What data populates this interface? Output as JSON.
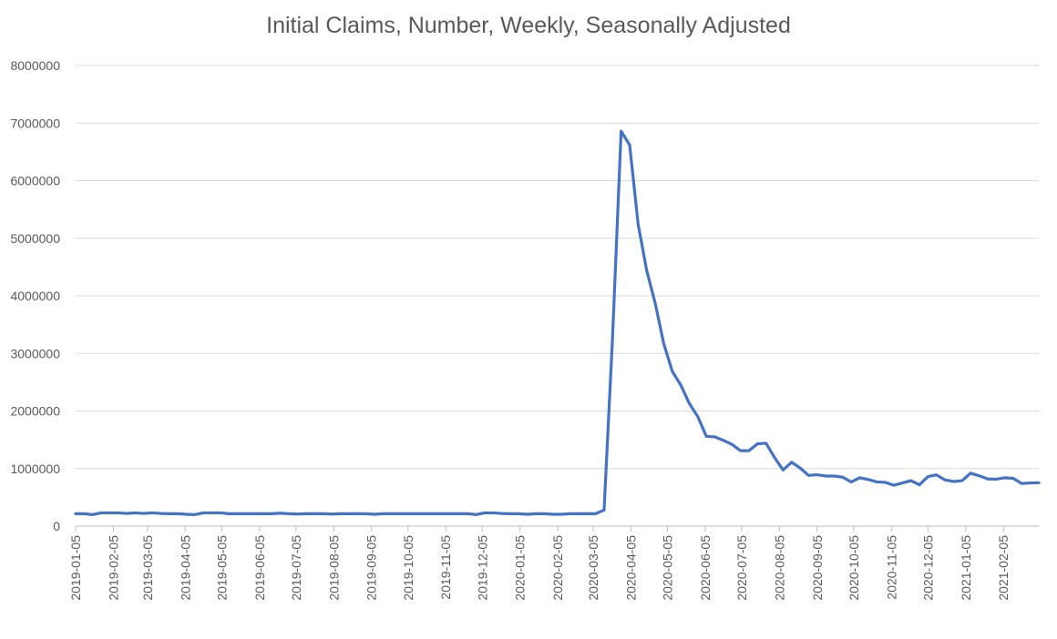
{
  "chart_data": {
    "type": "line",
    "title": "Initial Claims, Number, Weekly, Seasonally Adjusted",
    "xlabel": "",
    "ylabel": "",
    "ylim": [
      0,
      8000000
    ],
    "y_ticks": [
      "0",
      "1000000",
      "2000000",
      "3000000",
      "4000000",
      "5000000",
      "6000000",
      "7000000",
      "8000000"
    ],
    "x_tick_labels": [
      "2019-01-05",
      "2019-02-05",
      "2019-03-05",
      "2019-04-05",
      "2019-05-05",
      "2019-06-05",
      "2019-07-05",
      "2019-08-05",
      "2019-09-05",
      "2019-10-05",
      "2019-11-05",
      "2019-12-05",
      "2020-01-05",
      "2020-02-05",
      "2020-03-05",
      "2020-04-05",
      "2020-05-05",
      "2020-06-05",
      "2020-07-05",
      "2020-08-05",
      "2020-09-05",
      "2020-10-05",
      "2020-11-05",
      "2020-12-05",
      "2021-01-05",
      "2021-02-05"
    ],
    "x_range": [
      "2019-01-05",
      "2021-03-06"
    ],
    "grid": true,
    "legend": "none",
    "color": "#4472c4",
    "series": [
      {
        "x": [
          "2019-01-05",
          "2019-01-12",
          "2019-01-19",
          "2019-01-26",
          "2019-02-02",
          "2019-02-09",
          "2019-02-16",
          "2019-02-23",
          "2019-03-02",
          "2019-03-09",
          "2019-03-16",
          "2019-03-23",
          "2019-03-30",
          "2019-04-06",
          "2019-04-13",
          "2019-04-20",
          "2019-04-27",
          "2019-05-04",
          "2019-05-11",
          "2019-05-18",
          "2019-05-25",
          "2019-06-01",
          "2019-06-08",
          "2019-06-15",
          "2019-06-22",
          "2019-06-29",
          "2019-07-06",
          "2019-07-13",
          "2019-07-20",
          "2019-07-27",
          "2019-08-03",
          "2019-08-10",
          "2019-08-17",
          "2019-08-24",
          "2019-08-31",
          "2019-09-07",
          "2019-09-14",
          "2019-09-21",
          "2019-09-28",
          "2019-10-05",
          "2019-10-12",
          "2019-10-19",
          "2019-10-26",
          "2019-11-02",
          "2019-11-09",
          "2019-11-16",
          "2019-11-23",
          "2019-11-30",
          "2019-12-07",
          "2019-12-14",
          "2019-12-21",
          "2019-12-28",
          "2020-01-04",
          "2020-01-11",
          "2020-01-18",
          "2020-01-25",
          "2020-02-01",
          "2020-02-08",
          "2020-02-15",
          "2020-02-22",
          "2020-02-29",
          "2020-03-07",
          "2020-03-14",
          "2020-03-21",
          "2020-03-28",
          "2020-04-04",
          "2020-04-11",
          "2020-04-18",
          "2020-04-25",
          "2020-05-02",
          "2020-05-09",
          "2020-05-16",
          "2020-05-23",
          "2020-05-30",
          "2020-06-06",
          "2020-06-13",
          "2020-06-20",
          "2020-06-27",
          "2020-07-04",
          "2020-07-11",
          "2020-07-18",
          "2020-07-25",
          "2020-08-01",
          "2020-08-08",
          "2020-08-15",
          "2020-08-22",
          "2020-08-29",
          "2020-09-05",
          "2020-09-12",
          "2020-09-19",
          "2020-09-26",
          "2020-10-03",
          "2020-10-10",
          "2020-10-17",
          "2020-10-24",
          "2020-10-31",
          "2020-11-07",
          "2020-11-14",
          "2020-11-21",
          "2020-11-28",
          "2020-12-05",
          "2020-12-12",
          "2020-12-19",
          "2020-12-26",
          "2021-01-02",
          "2021-01-09",
          "2021-01-16",
          "2021-01-23",
          "2021-01-30",
          "2021-02-06",
          "2021-02-13",
          "2021-02-20",
          "2021-02-27",
          "2021-03-06"
        ],
        "values": [
          215000,
          215000,
          200000,
          230000,
          230000,
          230000,
          220000,
          230000,
          220000,
          230000,
          220000,
          215000,
          215000,
          205000,
          200000,
          230000,
          230000,
          230000,
          215000,
          215000,
          215000,
          215000,
          215000,
          215000,
          225000,
          215000,
          210000,
          215000,
          215000,
          215000,
          210000,
          215000,
          215000,
          215000,
          215000,
          205000,
          215000,
          215000,
          215000,
          215000,
          215000,
          215000,
          215000,
          215000,
          215000,
          215000,
          215000,
          200000,
          230000,
          230000,
          220000,
          215000,
          215000,
          205000,
          215000,
          215000,
          205000,
          205000,
          215000,
          215000,
          215000,
          215000,
          280000,
          3300000,
          6860000,
          6620000,
          5240000,
          4440000,
          3870000,
          3170000,
          2690000,
          2450000,
          2130000,
          1900000,
          1560000,
          1550000,
          1490000,
          1420000,
          1310000,
          1310000,
          1430000,
          1440000,
          1190000,
          975000,
          1110000,
          1010000,
          880000,
          893000,
          870000,
          870000,
          850000,
          767000,
          840000,
          810000,
          768000,
          760000,
          710000,
          750000,
          790000,
          718000,
          860000,
          890000,
          803000,
          775000,
          790000,
          920000,
          875000,
          820000,
          815000,
          840000,
          830000,
          740000,
          750000,
          754000
        ]
      }
    ]
  }
}
